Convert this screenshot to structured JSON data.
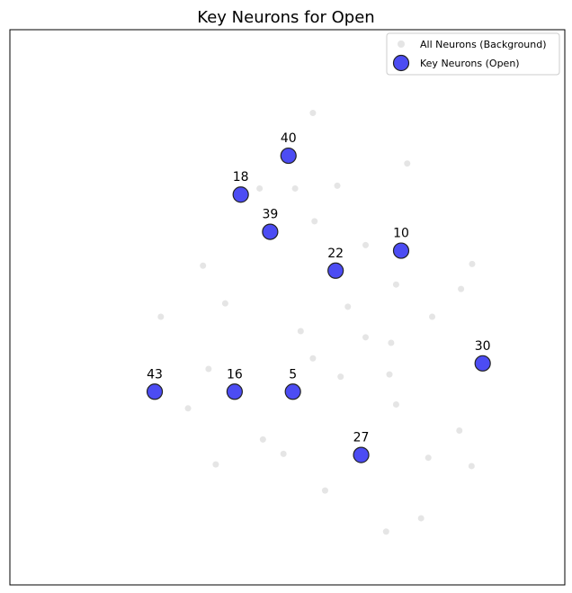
{
  "chart_data": {
    "type": "scatter",
    "title": "Key Neurons for Open",
    "xlabel": "",
    "ylabel": "",
    "xlim": [
      0,
      100
    ],
    "ylim": [
      0,
      100
    ],
    "grid": false,
    "axis_ticks": false,
    "legend_position": "top-right",
    "series": [
      {
        "name": "All Neurons (Background)",
        "color": "#d3d3d3",
        "points": [
          {
            "x": 54.6,
            "y": 85.0
          },
          {
            "x": 71.6,
            "y": 75.9
          },
          {
            "x": 45.0,
            "y": 71.4
          },
          {
            "x": 51.4,
            "y": 71.4
          },
          {
            "x": 59.0,
            "y": 71.9
          },
          {
            "x": 54.9,
            "y": 65.5
          },
          {
            "x": 64.1,
            "y": 61.2
          },
          {
            "x": 83.3,
            "y": 57.8
          },
          {
            "x": 34.8,
            "y": 57.5
          },
          {
            "x": 69.6,
            "y": 54.1
          },
          {
            "x": 81.3,
            "y": 53.3
          },
          {
            "x": 38.8,
            "y": 50.7
          },
          {
            "x": 60.9,
            "y": 50.1
          },
          {
            "x": 27.2,
            "y": 48.3
          },
          {
            "x": 76.1,
            "y": 48.3
          },
          {
            "x": 52.4,
            "y": 45.7
          },
          {
            "x": 64.1,
            "y": 44.6
          },
          {
            "x": 68.7,
            "y": 43.6
          },
          {
            "x": 54.6,
            "y": 40.8
          },
          {
            "x": 35.8,
            "y": 38.9
          },
          {
            "x": 59.6,
            "y": 37.5
          },
          {
            "x": 68.4,
            "y": 37.9
          },
          {
            "x": 32.1,
            "y": 31.8
          },
          {
            "x": 69.6,
            "y": 32.5
          },
          {
            "x": 81.0,
            "y": 27.8
          },
          {
            "x": 45.6,
            "y": 26.2
          },
          {
            "x": 49.3,
            "y": 23.6
          },
          {
            "x": 37.1,
            "y": 21.7
          },
          {
            "x": 75.4,
            "y": 22.9
          },
          {
            "x": 83.2,
            "y": 21.4
          },
          {
            "x": 56.8,
            "y": 17.0
          },
          {
            "x": 74.1,
            "y": 12.0
          },
          {
            "x": 67.8,
            "y": 9.6
          }
        ]
      },
      {
        "name": "Key Neurons (Open)",
        "color": "#0000ee",
        "points": [
          {
            "x": 50.2,
            "y": 77.3,
            "label": "40"
          },
          {
            "x": 41.6,
            "y": 70.3,
            "label": "18"
          },
          {
            "x": 46.9,
            "y": 63.6,
            "label": "39"
          },
          {
            "x": 70.5,
            "y": 60.2,
            "label": "10"
          },
          {
            "x": 58.7,
            "y": 56.6,
            "label": "22"
          },
          {
            "x": 85.2,
            "y": 39.9,
            "label": "30"
          },
          {
            "x": 26.1,
            "y": 34.8,
            "label": "43"
          },
          {
            "x": 40.5,
            "y": 34.8,
            "label": "16"
          },
          {
            "x": 51.0,
            "y": 34.8,
            "label": "5"
          },
          {
            "x": 63.3,
            "y": 23.4,
            "label": "27"
          }
        ]
      }
    ]
  }
}
